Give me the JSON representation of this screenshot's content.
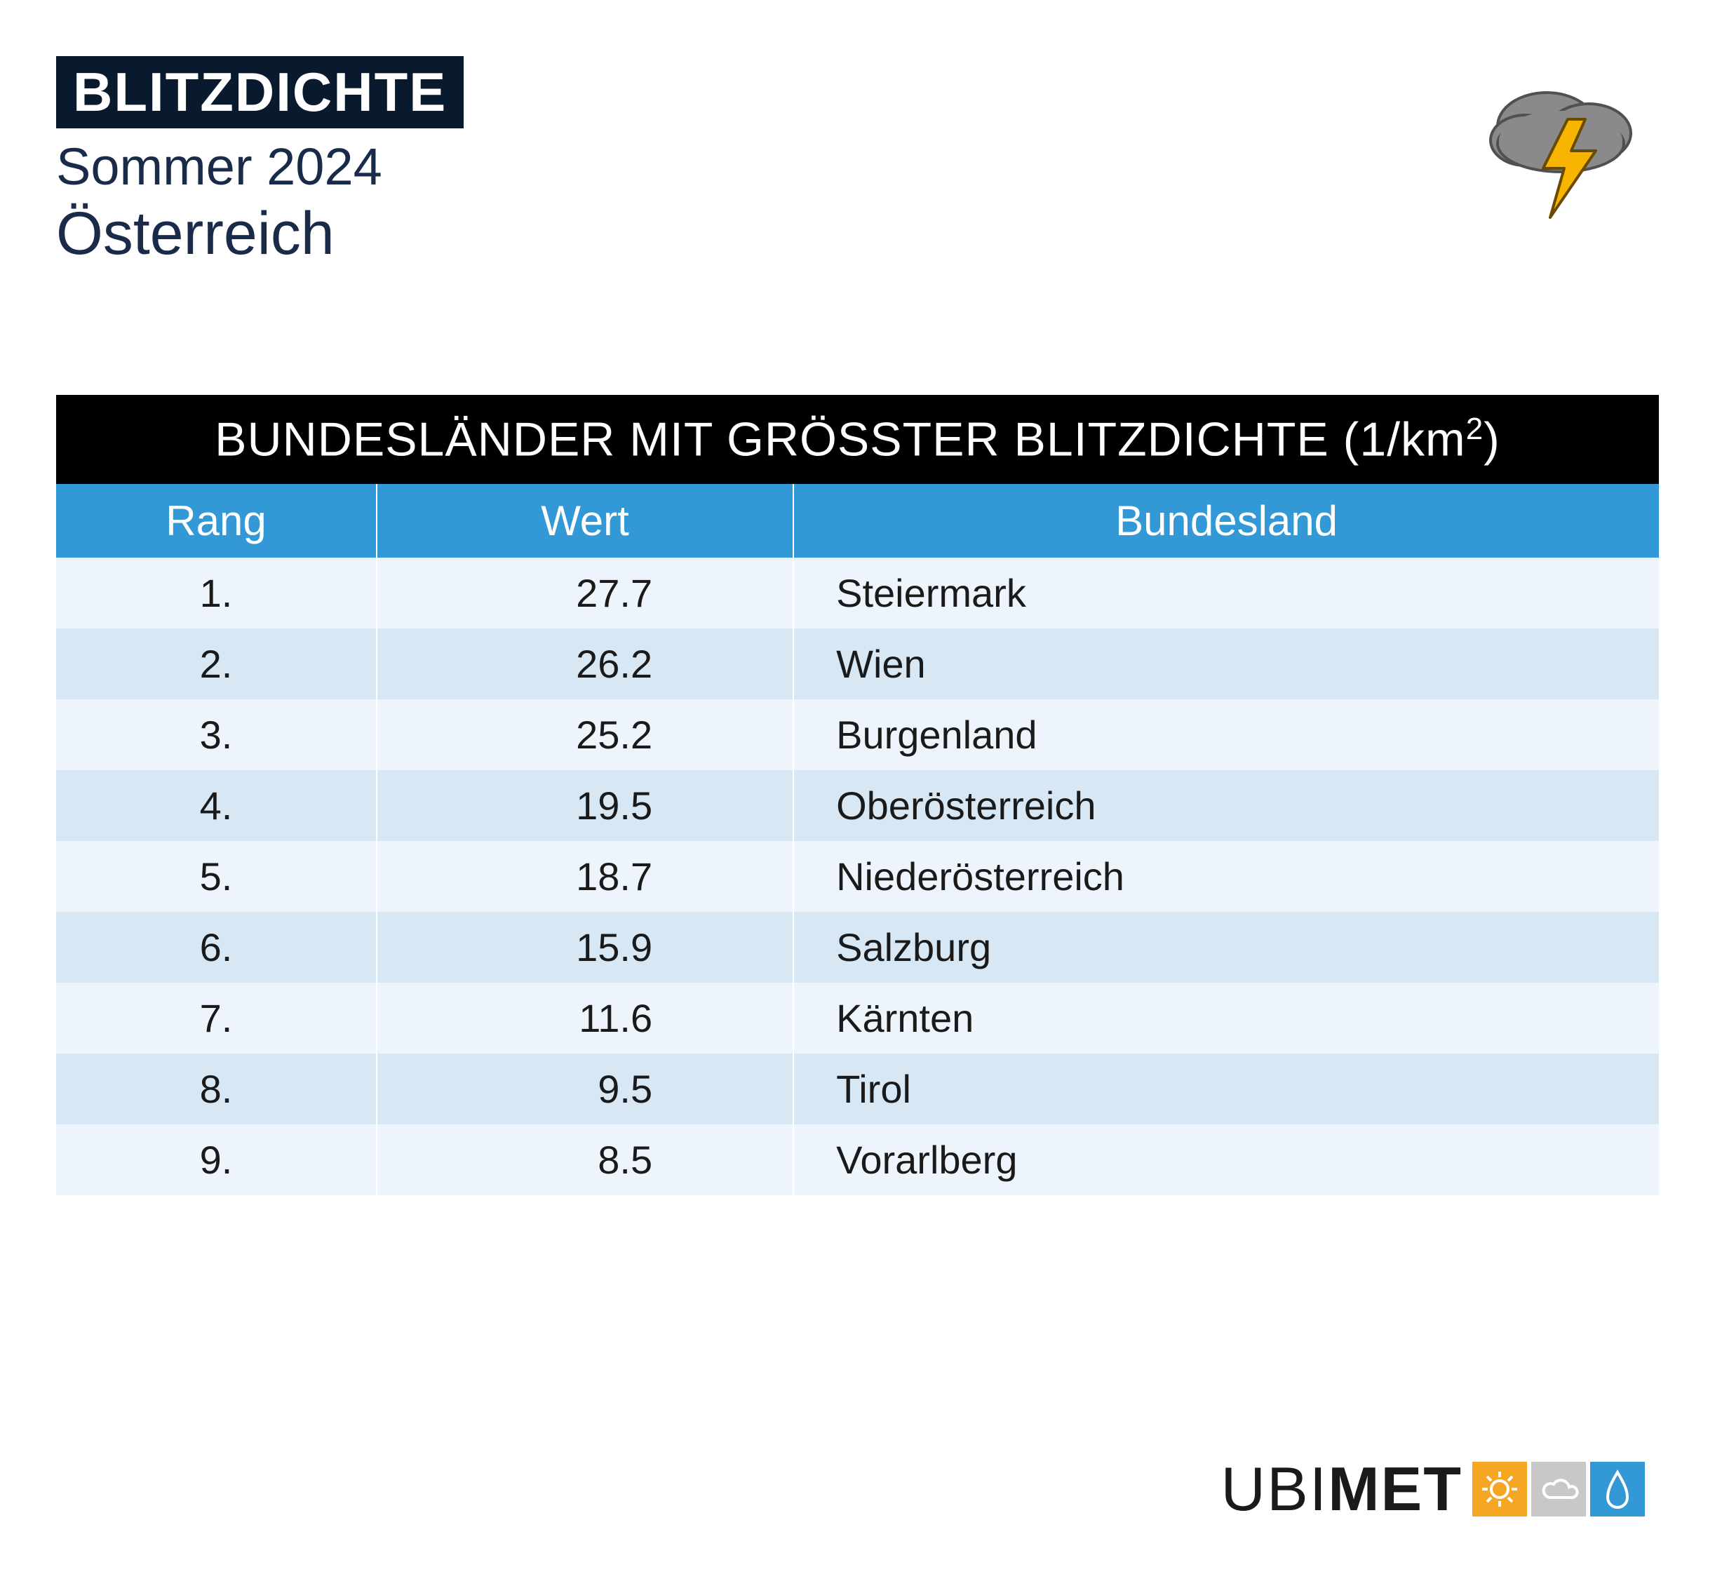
{
  "header": {
    "title": "BLITZDICHTE",
    "subtitle": "Sommer 2024",
    "country": "Österreich"
  },
  "table": {
    "type": "table",
    "title_prefix": "BUNDESLÄNDER MIT GRÖSSTER BLITZDICHTE (1/km",
    "title_suffix": ")",
    "title_exp": "2",
    "columns": {
      "rank": "Rang",
      "value": "Wert",
      "region": "Bundesland"
    },
    "rows": [
      {
        "rank": "1.",
        "value": "27.7",
        "region": "Steiermark"
      },
      {
        "rank": "2.",
        "value": "26.2",
        "region": "Wien"
      },
      {
        "rank": "3.",
        "value": "25.2",
        "region": "Burgenland"
      },
      {
        "rank": "4.",
        "value": "19.5",
        "region": "Oberösterreich"
      },
      {
        "rank": "5.",
        "value": "18.7",
        "region": "Niederösterreich"
      },
      {
        "rank": "6.",
        "value": "15.9",
        "region": "Salzburg"
      },
      {
        "rank": "7.",
        "value": "11.6",
        "region": "Kärnten"
      },
      {
        "rank": "8.",
        "value": "9.5",
        "region": "Tirol"
      },
      {
        "rank": "9.",
        "value": "8.5",
        "region": "Vorarlberg"
      }
    ],
    "colors": {
      "title_bg": "#000000",
      "title_fg": "#ffffff",
      "head_bg": "#3399d6",
      "head_fg": "#ffffff",
      "row_odd_bg": "#eef4fb",
      "row_even_bg": "#d8e7f4",
      "cell_fg": "#1a1a1a"
    },
    "font_sizes": {
      "title": 68,
      "head": 60,
      "cell": 56
    }
  },
  "footer": {
    "brand_thin": "UBI",
    "brand_bold": "MET",
    "logo_colors": {
      "sun_bg": "#f5a623",
      "cloud_bg": "#c8c8c8",
      "drop_bg": "#3399d6",
      "glyph": "#ffffff"
    }
  },
  "icon_colors": {
    "cloud_fill": "#8a8a8a",
    "cloud_stroke": "#505050",
    "bolt_fill": "#f7b500",
    "bolt_stroke": "#6a4a00"
  }
}
